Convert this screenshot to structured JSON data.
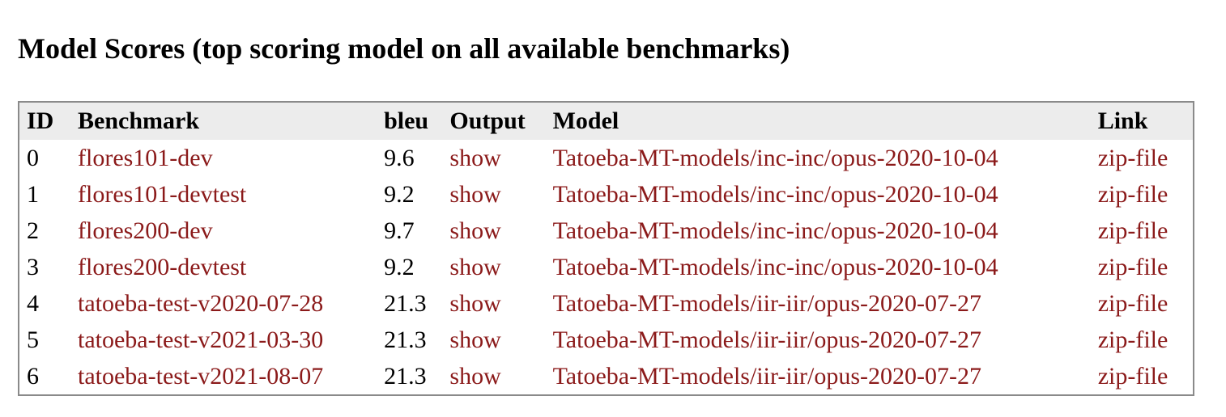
{
  "page": {
    "title": "Model Scores (top scoring model on all available benchmarks)"
  },
  "table": {
    "headers": {
      "id": "ID",
      "benchmark": "Benchmark",
      "bleu": "bleu",
      "output": "Output",
      "model": "Model",
      "link": "Link"
    },
    "rows": [
      {
        "id": "0",
        "benchmark": "flores101-dev",
        "bleu": "9.6",
        "output": "show",
        "model": "Tatoeba-MT-models/inc-inc/opus-2020-10-04",
        "link": "zip-file"
      },
      {
        "id": "1",
        "benchmark": "flores101-devtest",
        "bleu": "9.2",
        "output": "show",
        "model": "Tatoeba-MT-models/inc-inc/opus-2020-10-04",
        "link": "zip-file"
      },
      {
        "id": "2",
        "benchmark": "flores200-dev",
        "bleu": "9.7",
        "output": "show",
        "model": "Tatoeba-MT-models/inc-inc/opus-2020-10-04",
        "link": "zip-file"
      },
      {
        "id": "3",
        "benchmark": "flores200-devtest",
        "bleu": "9.2",
        "output": "show",
        "model": "Tatoeba-MT-models/inc-inc/opus-2020-10-04",
        "link": "zip-file"
      },
      {
        "id": "4",
        "benchmark": "tatoeba-test-v2020-07-28",
        "bleu": "21.3",
        "output": "show",
        "model": "Tatoeba-MT-models/iir-iir/opus-2020-07-27",
        "link": "zip-file"
      },
      {
        "id": "5",
        "benchmark": "tatoeba-test-v2021-03-30",
        "bleu": "21.3",
        "output": "show",
        "model": "Tatoeba-MT-models/iir-iir/opus-2020-07-27",
        "link": "zip-file"
      },
      {
        "id": "6",
        "benchmark": "tatoeba-test-v2021-08-07",
        "bleu": "21.3",
        "output": "show",
        "model": "Tatoeba-MT-models/iir-iir/opus-2020-07-27",
        "link": "zip-file"
      }
    ]
  },
  "colors": {
    "link": "#8b1a1a",
    "header_bg": "#ececec",
    "border": "#8a8a8a"
  }
}
